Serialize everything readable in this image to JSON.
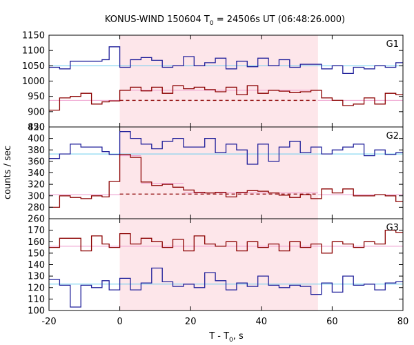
{
  "chart_data": {
    "type": "line",
    "title": "KONUS-WIND 150604 T",
    "title_sub": "0",
    "title_rest": " = 24506s UT (06:48:26.000)",
    "xlabel": "T - T",
    "xlabel_sub": "0",
    "xlabel_rest": ", s",
    "ylabel": "counts / sec",
    "xlim": [
      -20,
      80
    ],
    "x_ticks": [
      -20,
      0,
      20,
      40,
      60,
      80
    ],
    "x_tick_labels": [
      "-20",
      "0",
      "20",
      "40",
      "60",
      "80"
    ],
    "highlight_interval": [
      0,
      56
    ],
    "colors": {
      "blue": "#1f1f9a",
      "red": "#8b0000",
      "cyan": "#66ccee",
      "pink": "#ee99cc",
      "shade": "#fde6ea"
    },
    "panels": [
      {
        "label": "G1",
        "ylim": [
          850,
          1150
        ],
        "y_ticks": [
          850,
          900,
          950,
          1000,
          1050,
          1100,
          1150
        ],
        "y_tick_labels": [
          "850",
          "900",
          "950",
          "1000",
          "1050",
          "1100",
          "1150"
        ],
        "series": [
          {
            "color": "blue",
            "edges": [
              -20,
              -17,
              -14,
              -11,
              -8,
              -5,
              -3,
              0,
              3,
              6,
              9,
              12,
              15,
              18,
              21,
              24,
              27,
              30,
              33,
              36,
              39,
              42,
              45,
              48,
              51,
              54,
              57,
              60,
              63,
              66,
              69,
              72,
              75,
              78,
              80
            ],
            "values": [
              1045,
              1040,
              1065,
              1065,
              1065,
              1070,
              1112,
              1045,
              1070,
              1077,
              1068,
              1045,
              1050,
              1080,
              1050,
              1060,
              1075,
              1040,
              1065,
              1047,
              1075,
              1050,
              1070,
              1045,
              1055,
              1055,
              1040,
              1050,
              1025,
              1045,
              1040,
              1050,
              1045,
              1060
            ]
          },
          {
            "color": "red",
            "edges": [
              -20,
              -17,
              -14,
              -11,
              -8,
              -5,
              -3,
              0,
              3,
              6,
              9,
              12,
              15,
              18,
              21,
              24,
              27,
              30,
              33,
              36,
              39,
              42,
              45,
              48,
              51,
              54,
              57,
              60,
              63,
              66,
              69,
              72,
              75,
              78,
              80
            ],
            "values": [
              905,
              945,
              950,
              960,
              925,
              932,
              935,
              970,
              980,
              968,
              980,
              960,
              985,
              975,
              980,
              972,
              965,
              980,
              955,
              985,
              960,
              970,
              967,
              962,
              965,
              970,
              945,
              937,
              920,
              925,
              945,
              925,
              960,
              955
            ]
          }
        ],
        "background_lines": [
          {
            "color": "cyan",
            "x": [
              -20,
              80
            ],
            "y": [
              1050,
              1050
            ],
            "dashed": false
          },
          {
            "color": "pink",
            "x": [
              -20,
              0
            ],
            "y": [
              937,
              937
            ],
            "dashed": false
          },
          {
            "color": "pink",
            "x": [
              0,
              56
            ],
            "y": [
              970,
              970
            ],
            "dashed": false
          },
          {
            "color": "pink",
            "x": [
              56,
              80
            ],
            "y": [
              937,
              937
            ],
            "dashed": false
          },
          {
            "color": "red",
            "x": [
              0,
              56
            ],
            "y": [
              937,
              937
            ],
            "dashed": true
          }
        ]
      },
      {
        "label": "G2",
        "ylim": [
          260,
          420
        ],
        "y_ticks": [
          260,
          280,
          300,
          320,
          340,
          360,
          380,
          400,
          420
        ],
        "y_tick_labels": [
          "260",
          "280",
          "300",
          "320",
          "340",
          "360",
          "380",
          "400",
          "420"
        ],
        "series": [
          {
            "color": "blue",
            "edges": [
              -20,
              -17,
              -14,
              -11,
              -8,
              -5,
              -3,
              0,
              3,
              6,
              9,
              12,
              15,
              18,
              21,
              24,
              27,
              30,
              33,
              36,
              39,
              42,
              45,
              48,
              51,
              54,
              57,
              60,
              63,
              66,
              69,
              72,
              75,
              78,
              80
            ],
            "values": [
              365,
              373,
              390,
              385,
              385,
              377,
              372,
              412,
              400,
              390,
              382,
              395,
              400,
              385,
              385,
              400,
              375,
              390,
              380,
              355,
              390,
              360,
              385,
              395,
              375,
              385,
              373,
              380,
              385,
              390,
              370,
              380,
              372,
              375
            ]
          },
          {
            "color": "red",
            "edges": [
              -20,
              -17,
              -14,
              -11,
              -8,
              -5,
              -3,
              0,
              3,
              6,
              9,
              12,
              15,
              18,
              21,
              24,
              27,
              30,
              33,
              36,
              39,
              42,
              45,
              48,
              51,
              54,
              57,
              60,
              63,
              66,
              69,
              72,
              75,
              78,
              80
            ],
            "values": [
              280,
              300,
              297,
              295,
              300,
              298,
              325,
              372,
              367,
              324,
              318,
              320,
              315,
              310,
              306,
              305,
              306,
              298,
              306,
              309,
              308,
              305,
              301,
              297,
              302,
              295,
              312,
              305,
              312,
              300,
              300,
              302,
              300,
              290
            ]
          }
        ],
        "background_lines": [
          {
            "color": "cyan",
            "x": [
              -20,
              80
            ],
            "y": [
              373,
              373
            ],
            "dashed": false
          },
          {
            "color": "pink",
            "x": [
              -20,
              0
            ],
            "y": [
              302,
              302
            ],
            "dashed": false
          },
          {
            "color": "pink",
            "x": [
              0,
              6
            ],
            "y": [
              370,
              370
            ],
            "dashed": false
          },
          {
            "color": "pink",
            "x": [
              6,
              18
            ],
            "y": [
              322,
              322
            ],
            "dashed": false
          },
          {
            "color": "pink",
            "x": [
              18,
              56
            ],
            "y": [
              305,
              305
            ],
            "dashed": false
          },
          {
            "color": "pink",
            "x": [
              56,
              80
            ],
            "y": [
              302,
              302
            ],
            "dashed": false
          },
          {
            "color": "red",
            "x": [
              0,
              56
            ],
            "y": [
              303,
              303
            ],
            "dashed": true
          }
        ]
      },
      {
        "label": "G3",
        "ylim": [
          100,
          180
        ],
        "y_ticks": [
          100,
          110,
          120,
          130,
          140,
          150,
          160,
          170
        ],
        "y_tick_labels": [
          "100",
          "110",
          "120",
          "130",
          "140",
          "150",
          "160",
          "170"
        ],
        "series": [
          {
            "color": "red",
            "edges": [
              -20,
              -17,
              -14,
              -11,
              -8,
              -5,
              -3,
              0,
              3,
              6,
              9,
              12,
              15,
              18,
              21,
              24,
              27,
              30,
              33,
              36,
              39,
              42,
              45,
              48,
              51,
              54,
              57,
              60,
              63,
              66,
              69,
              72,
              75,
              78,
              80
            ],
            "values": [
              155,
              163,
              163,
              152,
              165,
              158,
              155,
              167,
              158,
              163,
              160,
              155,
              162,
              152,
              165,
              158,
              156,
              160,
              152,
              160,
              155,
              158,
              152,
              160,
              155,
              158,
              150,
              160,
              158,
              155,
              160,
              158,
              170,
              168
            ]
          },
          {
            "color": "blue",
            "edges": [
              -20,
              -17,
              -14,
              -11,
              -8,
              -5,
              -3,
              0,
              3,
              6,
              9,
              12,
              15,
              18,
              21,
              24,
              27,
              30,
              33,
              36,
              39,
              42,
              45,
              48,
              51,
              54,
              57,
              60,
              63,
              66,
              69,
              72,
              75,
              78,
              80
            ],
            "values": [
              127,
              122,
              103,
              122,
              120,
              126,
              118,
              128,
              118,
              124,
              137,
              125,
              121,
              123,
              120,
              133,
              126,
              118,
              124,
              121,
              130,
              122,
              120,
              122,
              121,
              114,
              124,
              116,
              130,
              122,
              123,
              118,
              124,
              125
            ]
          }
        ],
        "background_lines": [
          {
            "color": "cyan",
            "x": [
              -20,
              80
            ],
            "y": [
              123,
              123
            ],
            "dashed": false
          },
          {
            "color": "pink",
            "x": [
              -20,
              80
            ],
            "y": [
              156,
              156
            ],
            "dashed": false
          }
        ]
      }
    ]
  }
}
